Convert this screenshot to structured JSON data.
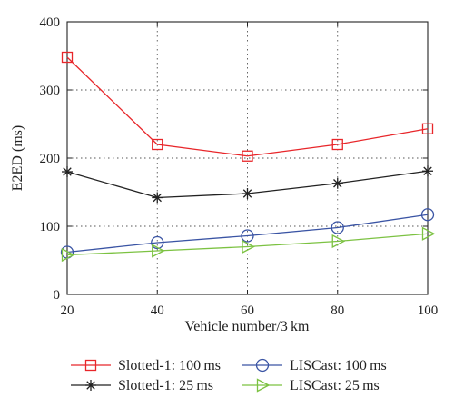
{
  "chart_data": {
    "type": "line",
    "xlabel": "Vehicle number/3 km",
    "ylabel": "E2ED (ms)",
    "x": [
      20,
      40,
      60,
      80,
      100
    ],
    "xlim": [
      20,
      100
    ],
    "ylim": [
      0,
      400
    ],
    "xticks": [
      "20",
      "40",
      "60",
      "80",
      "100"
    ],
    "yticks": [
      "0",
      "100",
      "200",
      "300",
      "400"
    ],
    "grid": true,
    "legend_position": "bottom",
    "series": [
      {
        "name": "Slotted-1: 100 ms",
        "color": "#e8262a",
        "marker": "square",
        "values": [
          348,
          220,
          203,
          220,
          243
        ]
      },
      {
        "name": "Slotted-1: 25 ms",
        "color": "#222222",
        "marker": "asterisk",
        "values": [
          180,
          142,
          148,
          163,
          181
        ]
      },
      {
        "name": "LISCast: 100 ms",
        "color": "#3a54a4",
        "marker": "circle",
        "values": [
          62,
          76,
          86,
          98,
          117
        ]
      },
      {
        "name": "LISCast: 25 ms",
        "color": "#7cc242",
        "marker": "triangle-right",
        "values": [
          58,
          64,
          70,
          78,
          89
        ]
      }
    ]
  }
}
